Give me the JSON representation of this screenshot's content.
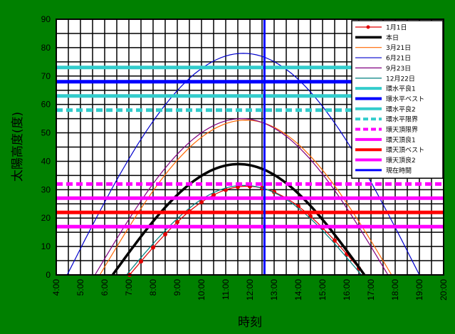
{
  "chart_data": {
    "type": "line",
    "title": "",
    "xlabel": "時刻",
    "ylabel": "太陽高度(度)",
    "xlim": [
      4,
      20
    ],
    "ylim": [
      0,
      90
    ],
    "x_tick_labels": [
      "4:00",
      "5:00",
      "6:00",
      "7:00",
      "8:00",
      "9:00",
      "10:00",
      "11:00",
      "12:00",
      "13:00",
      "14:00",
      "15:00",
      "16:00",
      "17:00",
      "18:00",
      "19:00",
      "20:00"
    ],
    "y_tick_labels": [
      "0",
      "10",
      "20",
      "30",
      "40",
      "50",
      "60",
      "70",
      "80",
      "90"
    ],
    "legend_position": "top-right",
    "series": [
      {
        "name": "1月1日",
        "color": "#e00000",
        "kind": "curve",
        "markers": true,
        "sunrise": 7.03,
        "sunset": 16.73,
        "peak": 31.2
      },
      {
        "name": "本日",
        "color": "#000000",
        "kind": "curve",
        "width": 3.5,
        "sunrise": 6.33,
        "sunset": 16.73,
        "peak": 39
      },
      {
        "name": "3月21日",
        "color": "#ff6600",
        "kind": "curve",
        "sunrise": 5.8,
        "sunset": 17.85,
        "peak": 54.5
      },
      {
        "name": "6月21日",
        "color": "#0000cc",
        "kind": "curve",
        "sunrise": 4.45,
        "sunset": 19.0,
        "peak": 78
      },
      {
        "name": "9月23日",
        "color": "#800080",
        "kind": "curve",
        "sunrise": 5.6,
        "sunset": 17.7,
        "peak": 55
      },
      {
        "name": "12月22日",
        "color": "#008080",
        "kind": "curve",
        "sunrise": 6.9,
        "sunset": 16.6,
        "peak": 31.5
      },
      {
        "name": "環水平良1",
        "color": "#33cccc",
        "kind": "hline",
        "y": 73,
        "width": 5
      },
      {
        "name": "環水平ベスト",
        "color": "#0000ff",
        "kind": "hline",
        "y": 68,
        "width": 5
      },
      {
        "name": "環水平良2",
        "color": "#33cccc",
        "kind": "hline",
        "y": 63,
        "width": 5
      },
      {
        "name": "環水平限界",
        "color": "#33cccc",
        "kind": "hline",
        "y": 58,
        "width": 5,
        "dashed": true
      },
      {
        "name": "環天頂限界",
        "color": "#ff00ff",
        "kind": "hline",
        "y": 32,
        "width": 5,
        "dashed": true
      },
      {
        "name": "環天頂良1",
        "color": "#ff00ff",
        "kind": "hline",
        "y": 27,
        "width": 5
      },
      {
        "name": "環天頂ベスト",
        "color": "#ff0000",
        "kind": "hline",
        "y": 22,
        "width": 5
      },
      {
        "name": "環天頂良2",
        "color": "#ff00ff",
        "kind": "hline",
        "y": 17,
        "width": 5
      },
      {
        "name": "現在時間",
        "color": "#0000ff",
        "kind": "vline",
        "x": 12.6,
        "width": 3
      }
    ]
  }
}
